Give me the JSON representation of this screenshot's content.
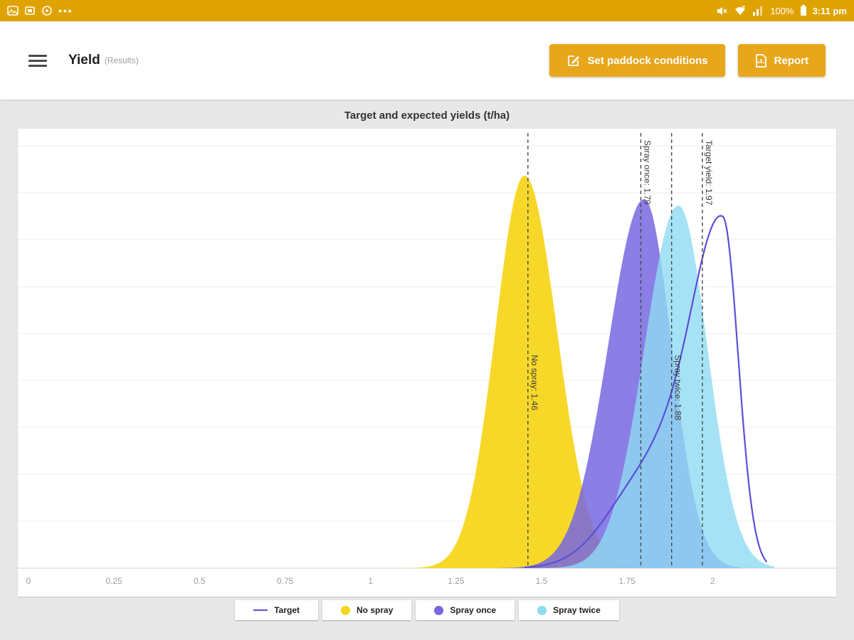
{
  "colors": {
    "accent": "#E8A71B",
    "status_bar_bg": "#DFA300",
    "page_bg": "#E8E8E8",
    "target": "#5B50D6",
    "no_spray": "#F7D61E",
    "spray_once": "#7767E0",
    "spray_twice": "#8FDBF2"
  },
  "status_bar": {
    "time": "3:11 pm",
    "battery": "100%",
    "left_icons": [
      "gallery-icon",
      "screenshot-icon",
      "circle-icon",
      "overflow-dots"
    ],
    "right_icons": [
      "mute-icon",
      "wifi-icon",
      "signal-icon",
      "battery-icon"
    ]
  },
  "header": {
    "title": "Yield",
    "subtitle": "(Results)",
    "buttons": [
      {
        "label": "Set paddock conditions",
        "icon": "edit-icon"
      },
      {
        "label": "Report",
        "icon": "report-icon"
      }
    ]
  },
  "chart_data": {
    "type": "area",
    "title": "Target and expected yields (t/ha)",
    "xlabel": "",
    "ylabel": "",
    "grid": true,
    "legend_position": "bottom",
    "x_range": [
      0,
      2.33
    ],
    "x_ticks": [
      "0",
      "0.25",
      "0.5",
      "0.75",
      "1",
      "1.25",
      "1.5",
      "1.75",
      "2"
    ],
    "series": [
      {
        "name": "No spray",
        "type": "area",
        "color": "#F7D61E",
        "opacity": 0.95,
        "components": [
          [
            1.45,
            0.085,
            0.095,
            0.92
          ]
        ],
        "range": [
          1.05,
          1.84
        ]
      },
      {
        "name": "Spray once",
        "type": "area",
        "color": "#7767E0",
        "opacity": 0.85,
        "components": [
          [
            1.8,
            0.105,
            0.08,
            0.865
          ]
        ],
        "range": [
          1.38,
          2.08
        ]
      },
      {
        "name": "Spray twice",
        "type": "area",
        "color": "#8FDBF2",
        "opacity": 0.8,
        "components": [
          [
            1.9,
            0.1,
            0.085,
            0.85
          ]
        ],
        "range": [
          1.5,
          2.18
        ]
      },
      {
        "name": "Target",
        "type": "line",
        "color": "#5B50D6",
        "opacity": 1,
        "components": [
          [
            2.03,
            0.095,
            0.045,
            0.8
          ],
          [
            1.82,
            0.12,
            0.1,
            0.22
          ]
        ],
        "range": [
          1.45,
          2.16
        ]
      }
    ],
    "annotations": [
      {
        "label": "No spray: 1.46",
        "x": 1.46,
        "label_pos": "middle"
      },
      {
        "label": "Spray once: 1.79",
        "x": 1.79,
        "label_pos": "top"
      },
      {
        "label": "Spray twice: 1.88",
        "x": 1.88,
        "label_pos": "middle"
      },
      {
        "label": "Target yield: 1.97",
        "x": 1.97,
        "label_pos": "top"
      }
    ],
    "legend": [
      {
        "label": "Target",
        "marker": "line",
        "color": "#5B50D6"
      },
      {
        "label": "No spray",
        "marker": "dot",
        "color": "#F7D61E"
      },
      {
        "label": "Spray once",
        "marker": "dot",
        "color": "#7767E0"
      },
      {
        "label": "Spray twice",
        "marker": "dot",
        "color": "#8FDBF2"
      }
    ]
  }
}
